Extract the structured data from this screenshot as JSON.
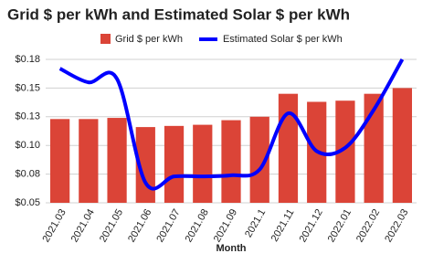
{
  "chart_data": {
    "type": "bar-line",
    "title": "Grid $ per kWh and Estimated Solar $ per kWh",
    "x_label": "Month",
    "categories": [
      "2021.03",
      "2021.04",
      "2021.05",
      "2021.06",
      "2021.07",
      "2021.08",
      "2021.09",
      "2021.1",
      "2021.11",
      "2021.12",
      "2022.01",
      "2022.02",
      "2022.03"
    ],
    "series": [
      {
        "name": "Grid $ per kWh",
        "type": "bar",
        "color": "#db4437",
        "values": [
          0.123,
          0.123,
          0.124,
          0.116,
          0.117,
          0.118,
          0.122,
          0.125,
          0.145,
          0.138,
          0.139,
          0.145,
          0.15
        ]
      },
      {
        "name": "Estimated Solar $ per kWh",
        "type": "line",
        "color": "#0000ff",
        "values": [
          0.167,
          0.155,
          0.158,
          0.0675,
          0.073,
          0.073,
          0.074,
          0.079,
          0.128,
          0.095,
          0.098,
          0.131,
          0.175
        ]
      }
    ],
    "ylim": [
      0.05,
      0.175
    ],
    "yticks": [
      {
        "value": 0.05,
        "label": "$0.05"
      },
      {
        "value": 0.075,
        "label": "$0.08"
      },
      {
        "value": 0.1,
        "label": "$0.10"
      },
      {
        "value": 0.125,
        "label": "$0.13"
      },
      {
        "value": 0.15,
        "label": "$0.15"
      },
      {
        "value": 0.175,
        "label": "$0.18"
      }
    ],
    "grid": true
  }
}
